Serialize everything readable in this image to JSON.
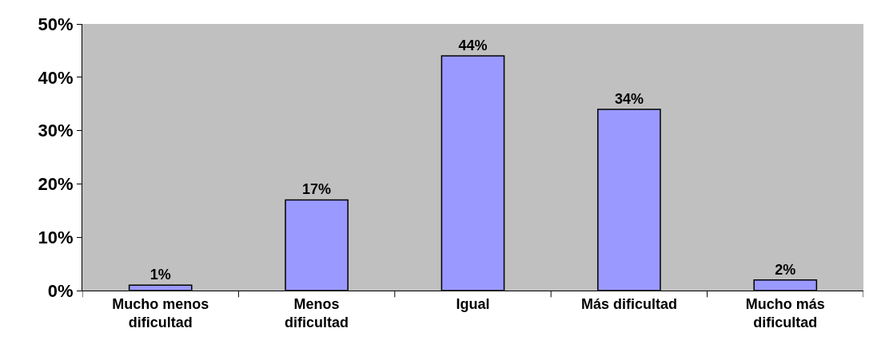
{
  "chart_data": {
    "type": "bar",
    "categories": [
      "Mucho menos dificultad",
      "Menos dificultad",
      "Igual",
      "Más dificultad",
      "Mucho más dificultad"
    ],
    "values": [
      1,
      17,
      44,
      34,
      2
    ],
    "value_labels": [
      "1%",
      "17%",
      "44%",
      "34%",
      "2%"
    ],
    "color": "#9999ff",
    "ylim": [
      0,
      50
    ],
    "yticks": [
      {
        "value": 0,
        "label": "0%"
      },
      {
        "value": 10,
        "label": "10%"
      },
      {
        "value": 20,
        "label": "20%"
      },
      {
        "value": 30,
        "label": "30%"
      },
      {
        "value": 40,
        "label": "40%"
      },
      {
        "value": 50,
        "label": "50%"
      }
    ],
    "grid": false,
    "legend": false
  }
}
